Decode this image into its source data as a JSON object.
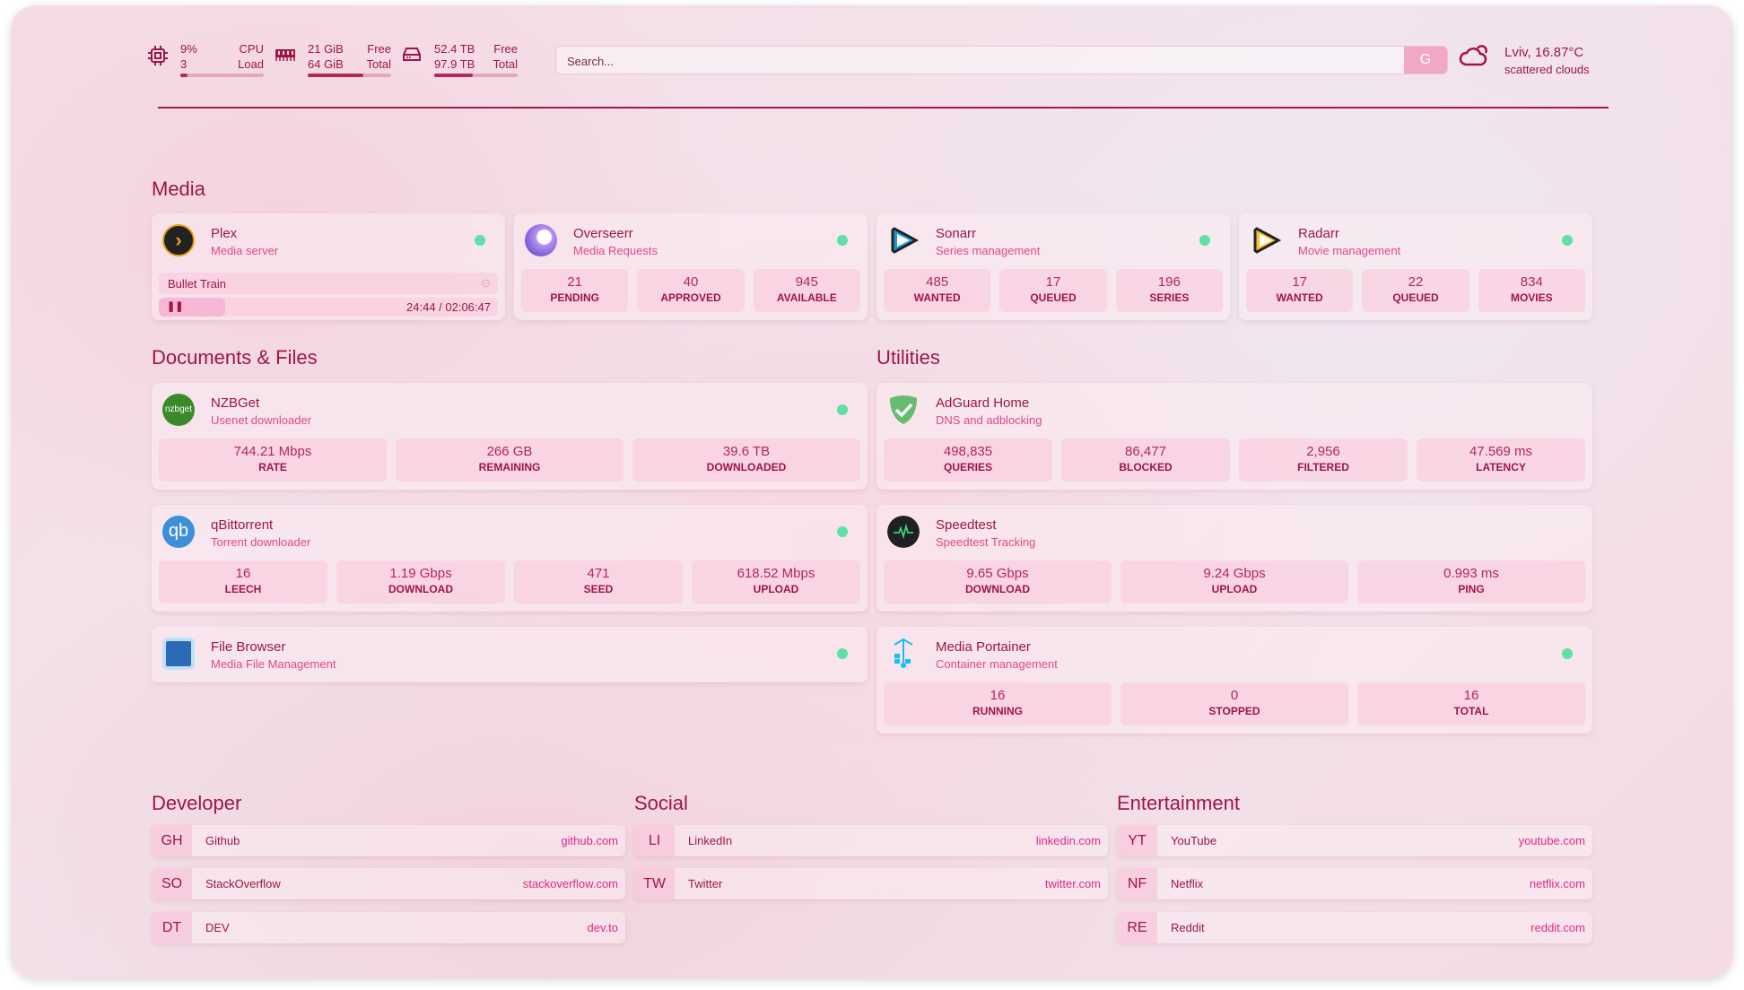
{
  "header": {
    "cpu": {
      "value": "9%",
      "cores": "3",
      "label1": "CPU",
      "label2": "Load",
      "usage_percent": 9
    },
    "memory": {
      "free": "21 GiB",
      "total": "64 GiB",
      "label1": "Free",
      "label2": "Total",
      "used_percent": 67
    },
    "disk": {
      "free": "52.4 TB",
      "total": "97.9 TB",
      "label1": "Free",
      "label2": "Total",
      "used_percent": 46
    },
    "search": {
      "placeholder": "Search...",
      "button": "G"
    },
    "weather": {
      "title": "Lviv, 16.87°C",
      "desc": "scattered clouds"
    }
  },
  "sections": {
    "media": "Media",
    "docs": "Documents & Files",
    "utilities": "Utilities",
    "developer": "Developer",
    "social": "Social",
    "entertainment": "Entertainment"
  },
  "media": [
    {
      "name": "Plex",
      "desc": "Media server",
      "status": "online",
      "now_playing": {
        "title": "Bullet Train",
        "time": "24:44 / 02:06:47",
        "progress_percent": 19.5
      }
    },
    {
      "name": "Overseerr",
      "desc": "Media Requests",
      "stats": [
        {
          "v": "21",
          "k": "PENDING"
        },
        {
          "v": "40",
          "k": "APPROVED"
        },
        {
          "v": "945",
          "k": "AVAILABLE"
        }
      ]
    },
    {
      "name": "Sonarr",
      "desc": "Series management",
      "stats": [
        {
          "v": "485",
          "k": "WANTED"
        },
        {
          "v": "17",
          "k": "QUEUED"
        },
        {
          "v": "196",
          "k": "SERIES"
        }
      ]
    },
    {
      "name": "Radarr",
      "desc": "Movie management",
      "stats": [
        {
          "v": "17",
          "k": "WANTED"
        },
        {
          "v": "22",
          "k": "QUEUED"
        },
        {
          "v": "834",
          "k": "MOVIES"
        }
      ]
    }
  ],
  "docs": [
    {
      "name": "NZBGet",
      "desc": "Usenet downloader",
      "icon_text": "nzbget",
      "stats": [
        {
          "v": "744.21 Mbps",
          "k": "RATE"
        },
        {
          "v": "266 GB",
          "k": "REMAINING"
        },
        {
          "v": "39.6 TB",
          "k": "DOWNLOADED"
        }
      ]
    },
    {
      "name": "qBittorrent",
      "desc": "Torrent downloader",
      "icon_text": "qb",
      "stats": [
        {
          "v": "16",
          "k": "LEECH"
        },
        {
          "v": "1.19 Gbps",
          "k": "DOWNLOAD"
        },
        {
          "v": "471",
          "k": "SEED"
        },
        {
          "v": "618.52 Mbps",
          "k": "UPLOAD"
        }
      ]
    },
    {
      "name": "File Browser",
      "desc": "Media File Management"
    }
  ],
  "utilities": [
    {
      "name": "AdGuard Home",
      "desc": "DNS and adblocking",
      "stats": [
        {
          "v": "498,835",
          "k": "QUERIES"
        },
        {
          "v": "86,477",
          "k": "BLOCKED"
        },
        {
          "v": "2,956",
          "k": "FILTERED"
        },
        {
          "v": "47.569 ms",
          "k": "LATENCY"
        }
      ]
    },
    {
      "name": "Speedtest",
      "desc": "Speedtest Tracking",
      "stats": [
        {
          "v": "9.65 Gbps",
          "k": "DOWNLOAD"
        },
        {
          "v": "9.24 Gbps",
          "k": "UPLOAD"
        },
        {
          "v": "0.993 ms",
          "k": "PING"
        }
      ]
    },
    {
      "name": "Media Portainer",
      "desc": "Container management",
      "stats": [
        {
          "v": "16",
          "k": "RUNNING"
        },
        {
          "v": "0",
          "k": "STOPPED"
        },
        {
          "v": "16",
          "k": "TOTAL"
        }
      ]
    }
  ],
  "bookmarks": {
    "developer": [
      {
        "abbr": "GH",
        "name": "Github",
        "url": "github.com"
      },
      {
        "abbr": "SO",
        "name": "StackOverflow",
        "url": "stackoverflow.com"
      },
      {
        "abbr": "DT",
        "name": "DEV",
        "url": "dev.to"
      }
    ],
    "social": [
      {
        "abbr": "LI",
        "name": "LinkedIn",
        "url": "linkedin.com"
      },
      {
        "abbr": "TW",
        "name": "Twitter",
        "url": "twitter.com"
      }
    ],
    "entertainment": [
      {
        "abbr": "YT",
        "name": "YouTube",
        "url": "youtube.com"
      },
      {
        "abbr": "NF",
        "name": "Netflix",
        "url": "netflix.com"
      },
      {
        "abbr": "RE",
        "name": "Reddit",
        "url": "reddit.com"
      }
    ]
  },
  "colors": {
    "primary": "#9e1548",
    "accent": "#e2468a",
    "status_online": "#5fe0a4"
  }
}
